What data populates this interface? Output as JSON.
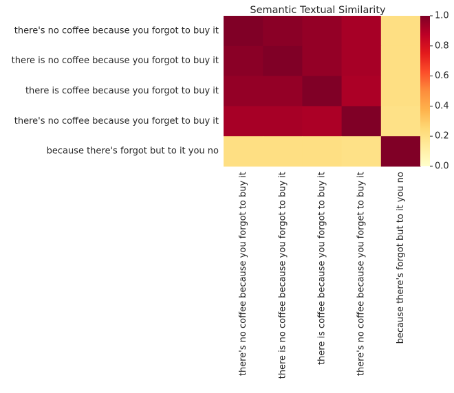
{
  "chart_data": {
    "type": "heatmap",
    "title": "Semantic Textual Similarity",
    "xlabel": "",
    "ylabel": "",
    "row_labels": [
      "there's no coffee because you forgot to buy it",
      "there is no coffee because you forgot to buy it",
      "there is coffee because you forgot to buy it",
      "there's no coffee because you forget to buy it",
      "because there's forgot but to it you no"
    ],
    "col_labels": [
      "there's no coffee because you forgot to buy it",
      "there is no coffee because you forgot to buy it",
      "there is coffee because you forgot to buy it",
      "there's no coffee because you forget to buy it",
      "because there's forgot but to it you no"
    ],
    "matrix": [
      [
        1.0,
        0.98,
        0.96,
        0.92,
        0.21
      ],
      [
        0.98,
        1.0,
        0.96,
        0.92,
        0.21
      ],
      [
        0.96,
        0.96,
        1.0,
        0.91,
        0.21
      ],
      [
        0.92,
        0.92,
        0.91,
        1.0,
        0.2
      ],
      [
        0.21,
        0.21,
        0.21,
        0.2,
        1.0
      ]
    ],
    "colorbar": {
      "colormap": "YlOrRd",
      "vmin": 0.0,
      "vmax": 1.0,
      "ticks": [
        "0.0",
        "0.2",
        "0.4",
        "0.6",
        "0.8",
        "1.0"
      ]
    },
    "grid": false
  }
}
